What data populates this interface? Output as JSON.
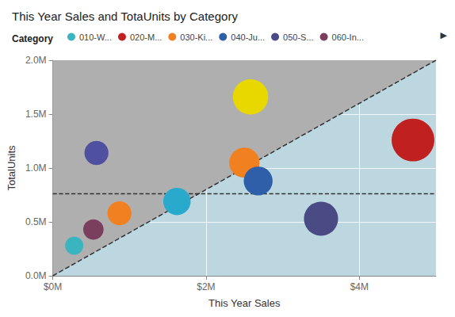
{
  "chart_data": {
    "type": "scatter",
    "title": "This Year Sales and TotaUnits by Category",
    "xlabel": "This Year Sales",
    "ylabel": "TotalUnits",
    "xlim": [
      0,
      5000000
    ],
    "ylim": [
      0,
      2000000
    ],
    "xticks": [
      {
        "value": 0,
        "label": "$0M"
      },
      {
        "value": 2000000,
        "label": "$2M"
      },
      {
        "value": 4000000,
        "label": "$4M"
      }
    ],
    "yticks": [
      {
        "value": 0,
        "label": "0.0M"
      },
      {
        "value": 500000,
        "label": "0.5M"
      },
      {
        "value": 1000000,
        "label": "1.0M"
      },
      {
        "value": 1500000,
        "label": "1.5M"
      },
      {
        "value": 2000000,
        "label": "2.0M"
      }
    ],
    "grid": true,
    "legend": "top left",
    "legend_title": "Category",
    "plot_background": "#bcd7e0",
    "series": [
      {
        "name": "010-W...",
        "color": "#3ab5c0",
        "x": [
          280000
        ],
        "y": [
          280000
        ],
        "size": [
          400
        ]
      },
      {
        "name": "020-M...",
        "color": "#c02020",
        "x": [
          4700000
        ],
        "y": [
          1260000
        ],
        "size": [
          2200
        ]
      },
      {
        "name": "030-Ki...",
        "color": "#f08020",
        "x": [
          870000,
          2500000
        ],
        "y": [
          580000,
          1050000
        ],
        "size": [
          700,
          1100
        ]
      },
      {
        "name": "040-Ju...",
        "color": "#2e5fa8",
        "x": [
          2680000
        ],
        "y": [
          880000
        ],
        "size": [
          1000
        ]
      },
      {
        "name": "050-S...",
        "color": "#4a4a85",
        "x": [
          3500000
        ],
        "y": [
          530000
        ],
        "size": [
          1400
        ]
      },
      {
        "name": "060-In...",
        "color": "#7b3f5e",
        "x": [
          530000
        ],
        "y": [
          430000
        ],
        "size": [
          500
        ]
      },
      {
        "color": "#29aacc",
        "x": [
          1620000
        ],
        "y": [
          690000
        ],
        "size": [
          900
        ]
      },
      {
        "color": "#5050a0",
        "x": [
          570000
        ],
        "y": [
          1140000
        ],
        "size": [
          700
        ]
      },
      {
        "color": "#e8d800",
        "x": [
          2580000
        ],
        "y": [
          1660000
        ],
        "size": [
          1500
        ]
      }
    ],
    "reference_lines": [
      {
        "y": 760000,
        "color": "#333333",
        "line_style": "dashed"
      }
    ],
    "trend_line": {
      "x": [
        0,
        5000000
      ],
      "y": [
        0,
        2000000
      ],
      "color": "#333333",
      "line_style": "dashed"
    },
    "shaded_region": {
      "x": [
        0,
        0,
        5000000
      ],
      "y": [
        0,
        2000000,
        2000000
      ],
      "color": "#b0afb0"
    },
    "annotations": [
      {
        "text": "▶"
      }
    ]
  }
}
